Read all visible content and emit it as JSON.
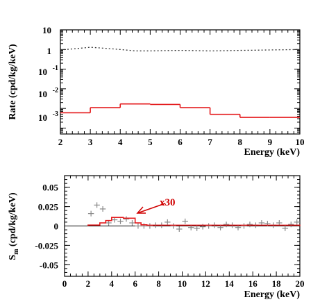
{
  "chart_data": [
    {
      "type": "line",
      "ylabel": "Rate (cpd/kg/keV)",
      "xlabel": "Energy (keV)",
      "xlim": [
        2,
        10
      ],
      "yscale": "log",
      "ylim": [
        5e-05,
        10
      ],
      "x_ticks": [
        "2",
        "3",
        "4",
        "5",
        "6",
        "7",
        "8",
        "9",
        "10"
      ],
      "y_tick_labels": [
        {
          "base": "10",
          "exp": ""
        },
        {
          "base": "1",
          "exp": ""
        },
        {
          "base": "10",
          "exp": "-1"
        },
        {
          "base": "10",
          "exp": "-2"
        },
        {
          "base": "10",
          "exp": "-3"
        }
      ],
      "series": [
        {
          "style": "dotted",
          "color": "#333333",
          "x": [
            2.0,
            2.5,
            3.0,
            3.5,
            4.0,
            4.5,
            5.0,
            5.5,
            6.0,
            6.5,
            7.0,
            7.5,
            8.0,
            8.5,
            9.0,
            9.5,
            10.0
          ],
          "y": [
            0.95,
            1.1,
            1.3,
            1.15,
            1.0,
            0.85,
            0.85,
            0.88,
            0.9,
            0.88,
            0.85,
            0.87,
            0.9,
            0.92,
            0.95,
            0.97,
            1.0
          ]
        },
        {
          "style": "step",
          "color": "#e41a1c",
          "edges": [
            2,
            3,
            4,
            5,
            6,
            7,
            8,
            9,
            10
          ],
          "values": [
            0.0006,
            0.0011,
            0.0017,
            0.0016,
            0.0011,
            0.0005,
            0.00035,
            0.00035
          ]
        }
      ]
    },
    {
      "type": "scatter",
      "ylabel_base": "S",
      "ylabel_sub": "m",
      "ylabel_rest": " (cpd/kg/keV)",
      "xlabel": "Energy (keV)",
      "xlim": [
        0,
        20
      ],
      "ylim": [
        -0.065,
        0.065
      ],
      "x_ticks": [
        "0",
        "2",
        "4",
        "6",
        "8",
        "10",
        "12",
        "14",
        "16",
        "18",
        "20"
      ],
      "y_ticks": [
        "0.05",
        "0.025",
        "0",
        "-0.025",
        "-0.05"
      ],
      "y_tick_values": [
        0.05,
        0.025,
        0,
        -0.025,
        -0.05
      ],
      "annotation": "x30",
      "series": [
        {
          "style": "points",
          "color": "#888888",
          "xerr": 0.25,
          "points": [
            [
              2.25,
              0.016
            ],
            [
              2.75,
              0.027
            ],
            [
              3.25,
              0.022
            ],
            [
              3.75,
              0.004
            ],
            [
              4.25,
              0.008
            ],
            [
              4.75,
              0.006
            ],
            [
              5.25,
              0.009
            ],
            [
              5.75,
              0.004
            ],
            [
              6.25,
              0.0
            ],
            [
              6.75,
              0.0
            ],
            [
              7.25,
              0.0
            ],
            [
              7.75,
              0.001
            ],
            [
              8.25,
              0.001
            ],
            [
              8.75,
              0.005
            ],
            [
              9.25,
              0.0
            ],
            [
              9.75,
              -0.004
            ],
            [
              10.25,
              0.006
            ],
            [
              10.75,
              -0.002
            ],
            [
              11.25,
              -0.003
            ],
            [
              11.75,
              -0.001
            ],
            [
              12.25,
              0.0
            ],
            [
              12.75,
              0.001
            ],
            [
              13.25,
              -0.002
            ],
            [
              13.75,
              0.002
            ],
            [
              14.25,
              0.001
            ],
            [
              14.75,
              -0.002
            ],
            [
              15.25,
              0.0
            ],
            [
              15.75,
              0.002
            ],
            [
              16.25,
              0.001
            ],
            [
              16.75,
              0.004
            ],
            [
              17.25,
              0.003
            ],
            [
              17.75,
              0.001
            ],
            [
              18.25,
              0.004
            ],
            [
              18.75,
              -0.003
            ],
            [
              19.25,
              0.002
            ],
            [
              19.75,
              0.005
            ]
          ]
        },
        {
          "style": "step",
          "color": "#e41a1c",
          "edges": [
            2,
            3,
            3.5,
            4,
            5,
            6,
            6.5,
            7,
            8,
            20
          ],
          "values": [
            0.0012,
            0.004,
            0.007,
            0.011,
            0.01,
            0.004,
            0.0015,
            0.001,
            0.001
          ]
        }
      ]
    }
  ]
}
